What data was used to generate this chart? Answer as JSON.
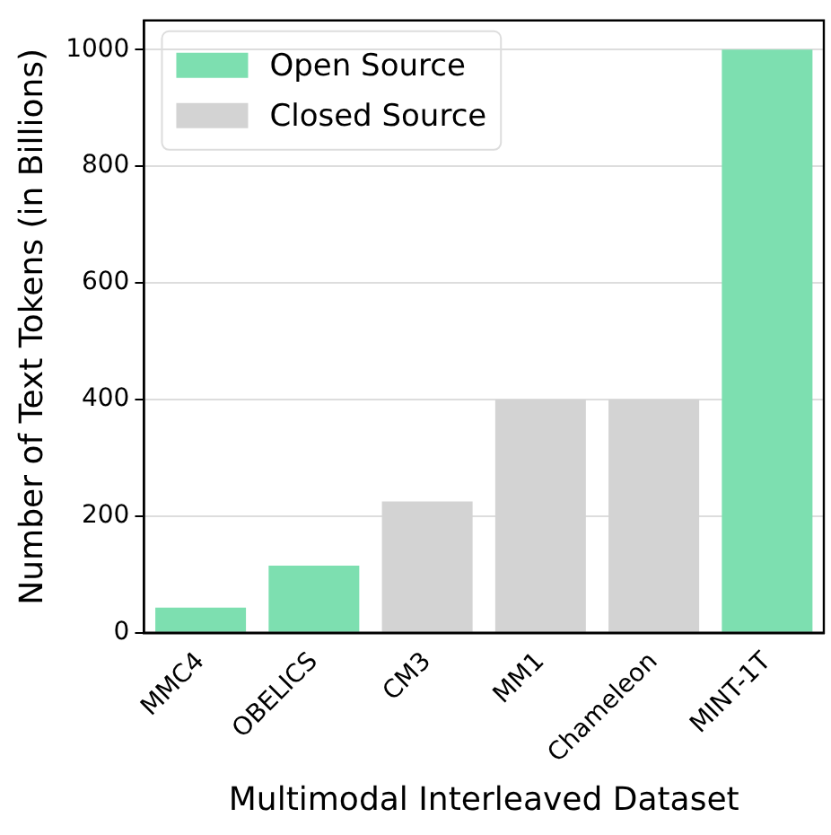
{
  "chart_data": {
    "type": "bar",
    "xlabel": "Multimodal Interleaved Dataset",
    "ylabel": "Number of Text Tokens (in Billions)",
    "categories": [
      "MMC4",
      "OBELICS",
      "CM3",
      "MM1",
      "Chameleon",
      "MINT-1T"
    ],
    "series": [
      {
        "name": "Open Source",
        "color": "#7ddfb0",
        "values": [
          43,
          115,
          null,
          null,
          null,
          1000
        ]
      },
      {
        "name": "Closed Source",
        "color": "#d3d3d3",
        "values": [
          null,
          null,
          225,
          400,
          400,
          null
        ]
      }
    ],
    "ylim": [
      0,
      1050
    ],
    "yticks": [
      0,
      200,
      400,
      600,
      800,
      1000
    ],
    "grid": "y",
    "legend": "top left"
  }
}
